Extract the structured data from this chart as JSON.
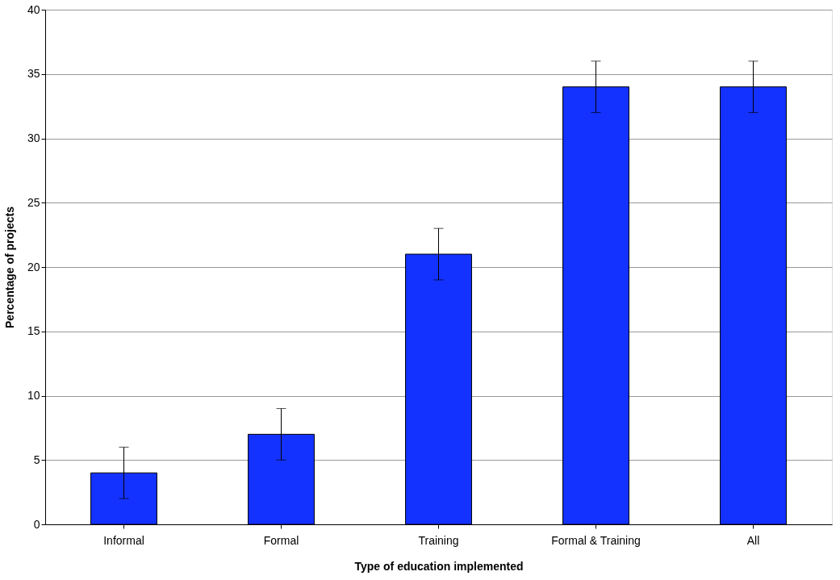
{
  "chart_data": {
    "type": "bar",
    "xlabel": "Type of education implemented",
    "ylabel": "Percentage of projects",
    "categories": [
      "Informal",
      "Formal",
      "Training",
      "Formal  & Training",
      "All"
    ],
    "values": [
      4,
      7,
      21,
      34,
      34
    ],
    "errors": [
      2,
      2,
      2,
      2,
      2
    ],
    "color": "#1432ff",
    "ylim": [
      0,
      40
    ],
    "yticks": [
      0,
      5,
      10,
      15,
      20,
      25,
      30,
      35,
      40
    ],
    "grid": "y"
  }
}
